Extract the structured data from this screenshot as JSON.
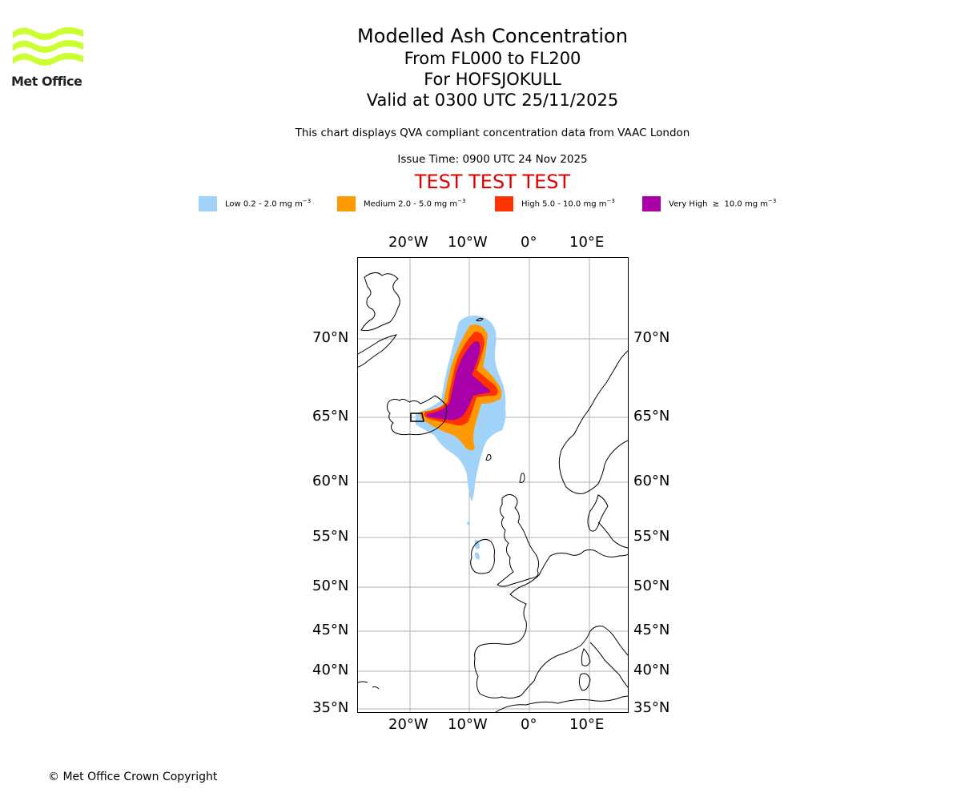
{
  "brand": {
    "name": "Met Office",
    "logo_color": "#ccff33"
  },
  "title": {
    "main": "Modelled Ash Concentration",
    "levels": "From FL000 to FL200",
    "volcano": "For HOFSJOKULL",
    "valid": "Valid at 0300 UTC 25/11/2025"
  },
  "subtitle": "This chart displays QVA compliant concentration data from VAAC London",
  "issue_time": "Issue Time: 0900 UTC 24 Nov 2025",
  "test_banner": "TEST TEST TEST",
  "legend": [
    {
      "label": "Low 0.2 - 2.0 mg m",
      "unit_exp": "−3",
      "color": "#a0d2fa"
    },
    {
      "label": "Medium 2.0 - 5.0 mg m",
      "unit_exp": "−3",
      "color": "#ff9900"
    },
    {
      "label": "High 5.0 - 10.0 mg m",
      "unit_exp": "−3",
      "color": "#ff3300"
    },
    {
      "label": "Very High  ≥  10.0 mg m",
      "unit_exp": "−3",
      "color": "#aa00aa"
    }
  ],
  "map": {
    "lon_ticks": [
      "20°W",
      "10°W",
      "0°",
      "10°E"
    ],
    "lat_ticks": [
      "70°N",
      "65°N",
      "60°N",
      "55°N",
      "50°N",
      "45°N",
      "40°N",
      "35°N"
    ],
    "grid_color": "#b0b0b0"
  },
  "copyright": "© Met Office Crown Copyright"
}
